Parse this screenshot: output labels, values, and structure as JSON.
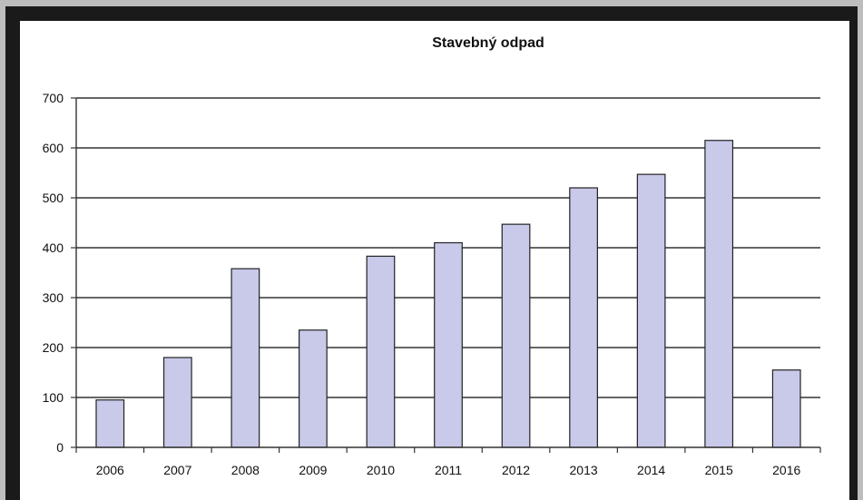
{
  "chart_data": {
    "type": "bar",
    "title": "Stavebný odpad",
    "xlabel": "",
    "ylabel": "",
    "categories": [
      "2006",
      "2007",
      "2008",
      "2009",
      "2010",
      "2011",
      "2012",
      "2013",
      "2014",
      "2015",
      "2016"
    ],
    "values": [
      95,
      180,
      358,
      235,
      383,
      410,
      447,
      520,
      547,
      615,
      155
    ],
    "ylim": [
      0,
      700
    ],
    "yticks": [
      "0",
      "100",
      "200",
      "300",
      "400",
      "500",
      "600",
      "700"
    ],
    "grid": true,
    "legend": "none",
    "colors": {
      "bar_fill": "#c9c9ea",
      "bar_stroke": "#222222",
      "grid": "#333333",
      "axis": "#333333"
    }
  }
}
